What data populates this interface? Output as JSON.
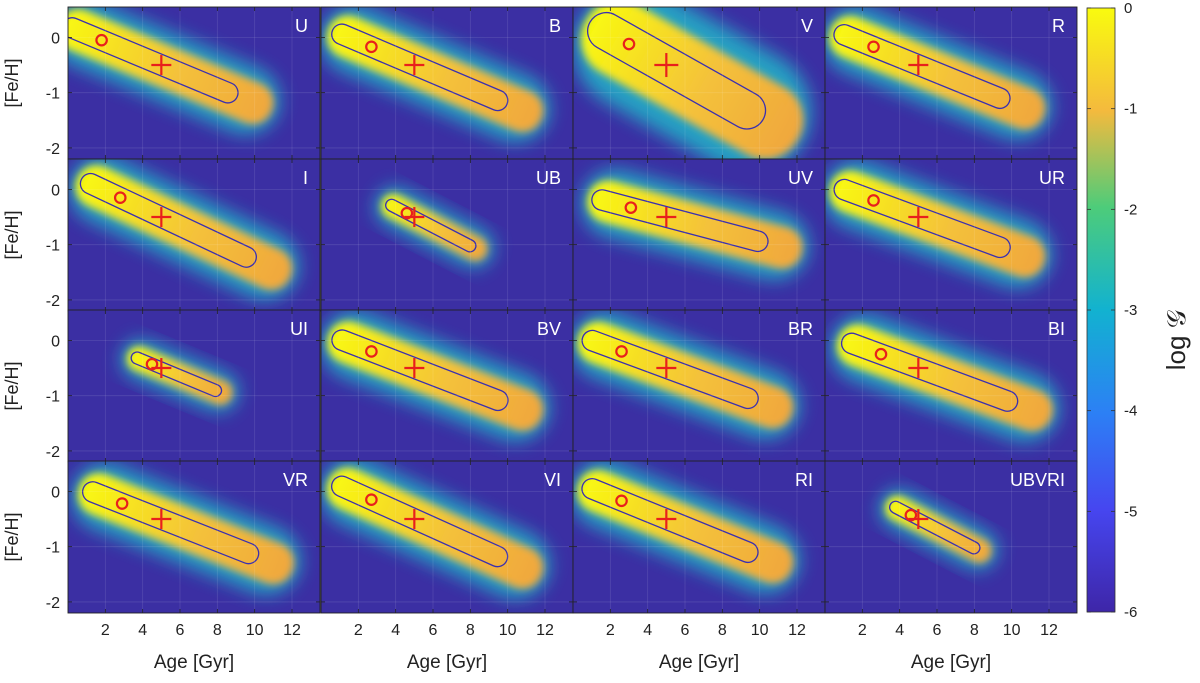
{
  "figure": {
    "y_axis_label": "[Fe/H]",
    "x_axis_label": "Age [Gyr]",
    "colorbar_label": "log 𝒢"
  },
  "chart_data": {
    "type": "heatmap",
    "layout": {
      "rows": 4,
      "cols": 4
    },
    "x_range": [
      0,
      13.5
    ],
    "y_range": [
      -2.2,
      0.55
    ],
    "x_ticks": [
      2,
      4,
      6,
      8,
      10,
      12
    ],
    "y_ticks": [
      0,
      -1,
      -2
    ],
    "x_tick_labels": [
      "2",
      "4",
      "6",
      "8",
      "10",
      "12"
    ],
    "y_tick_labels": [
      "0",
      "-1",
      "-2"
    ],
    "colorbar": {
      "range": [
        -6,
        0
      ],
      "ticks": [
        0,
        -1,
        -2,
        -3,
        -4,
        -5,
        -6
      ],
      "tick_labels": [
        "0",
        "-1",
        "-2",
        "-3",
        "-4",
        "-5",
        "-6"
      ]
    },
    "colors": {
      "low": "#3e26a8",
      "mid": "#24bdc1",
      "high": "#f9fb0e",
      "marker": "#e8201c",
      "contour": "#3a2fb0"
    },
    "true_value": {
      "age": 5.0,
      "feh": -0.5
    },
    "panels": [
      {
        "label": "U",
        "best_fit": {
          "age": 1.8,
          "feh": -0.05
        }
      },
      {
        "label": "B",
        "best_fit": {
          "age": 2.7,
          "feh": -0.17
        }
      },
      {
        "label": "V",
        "best_fit": {
          "age": 3.0,
          "feh": -0.12
        }
      },
      {
        "label": "R",
        "best_fit": {
          "age": 2.6,
          "feh": -0.17
        }
      },
      {
        "label": "I",
        "best_fit": {
          "age": 2.8,
          "feh": -0.15
        }
      },
      {
        "label": "UB",
        "best_fit": {
          "age": 4.6,
          "feh": -0.43
        }
      },
      {
        "label": "UV",
        "best_fit": {
          "age": 3.1,
          "feh": -0.33
        }
      },
      {
        "label": "UR",
        "best_fit": {
          "age": 2.6,
          "feh": -0.2
        }
      },
      {
        "label": "UI",
        "best_fit": {
          "age": 4.5,
          "feh": -0.43
        }
      },
      {
        "label": "BV",
        "best_fit": {
          "age": 2.7,
          "feh": -0.2
        }
      },
      {
        "label": "BR",
        "best_fit": {
          "age": 2.6,
          "feh": -0.2
        }
      },
      {
        "label": "BI",
        "best_fit": {
          "age": 3.0,
          "feh": -0.25
        }
      },
      {
        "label": "VR",
        "best_fit": {
          "age": 2.9,
          "feh": -0.22
        }
      },
      {
        "label": "VI",
        "best_fit": {
          "age": 2.7,
          "feh": -0.15
        }
      },
      {
        "label": "RI",
        "best_fit": {
          "age": 2.6,
          "feh": -0.17
        }
      },
      {
        "label": "UBVRI",
        "best_fit": {
          "age": 4.6,
          "feh": -0.43
        }
      }
    ]
  }
}
